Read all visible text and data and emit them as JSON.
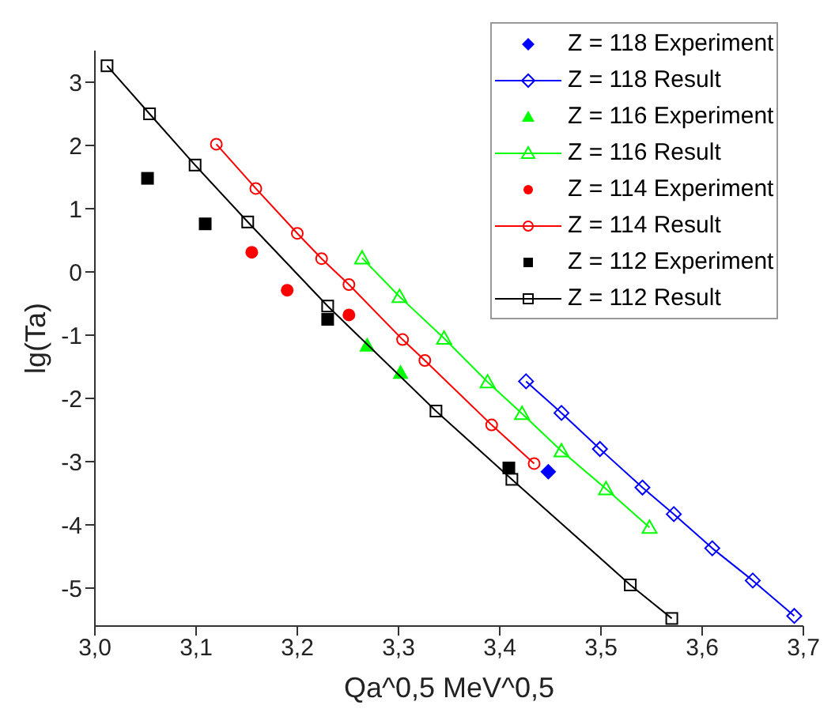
{
  "chart_data": {
    "type": "scatter",
    "xlabel": "Qa^0,5  MeV^0,5",
    "ylabel": "lg(Ta)",
    "xlim": [
      3.0,
      3.7
    ],
    "ylim": [
      -5.6,
      3.5
    ],
    "xticks": [
      {
        "value": 3.0,
        "label": "3,0"
      },
      {
        "value": 3.1,
        "label": "3,1"
      },
      {
        "value": 3.2,
        "label": "3,2"
      },
      {
        "value": 3.3,
        "label": "3,3"
      },
      {
        "value": 3.4,
        "label": "3,4"
      },
      {
        "value": 3.5,
        "label": "3,5"
      },
      {
        "value": 3.6,
        "label": "3,6"
      },
      {
        "value": 3.7,
        "label": "3,7"
      }
    ],
    "yticks": [
      -5,
      -4,
      -3,
      -2,
      -1,
      0,
      1,
      2,
      3
    ],
    "grid": false,
    "legend": "top right",
    "series": [
      {
        "name": "Z = 118 Experiment",
        "type": "scatter",
        "marker": "diamond",
        "color": "#0000ff",
        "x": [
          3.448
        ],
        "values": [
          -3.16
        ]
      },
      {
        "name": "Z = 118 Result",
        "type": "line",
        "marker": "diamond",
        "color": "#0000ff",
        "x": [
          3.426,
          3.461,
          3.499,
          3.541,
          3.572,
          3.61,
          3.65,
          3.691
        ],
        "values": [
          -1.73,
          -2.23,
          -2.8,
          -3.41,
          -3.83,
          -4.37,
          -4.88,
          -5.44
        ]
      },
      {
        "name": "Z = 116 Experiment",
        "type": "scatter",
        "marker": "triangle",
        "color": "#00ff00",
        "x": [
          3.269,
          3.302
        ],
        "values": [
          -1.16,
          -1.59
        ]
      },
      {
        "name": "Z = 116 Result",
        "type": "line",
        "marker": "triangle",
        "color": "#00ff00",
        "x": [
          3.264,
          3.301,
          3.345,
          3.388,
          3.422,
          3.461,
          3.505,
          3.548
        ],
        "values": [
          0.22,
          -0.39,
          -1.05,
          -1.74,
          -2.24,
          -2.83,
          -3.43,
          -4.04
        ]
      },
      {
        "name": "Z = 114 Experiment",
        "type": "scatter",
        "marker": "circle",
        "color": "#ff0000",
        "x": [
          3.155,
          3.19,
          3.251
        ],
        "values": [
          0.31,
          -0.29,
          -0.68
        ]
      },
      {
        "name": "Z = 114 Result",
        "type": "line",
        "marker": "circle",
        "color": "#ff0000",
        "x": [
          3.12,
          3.159,
          3.2,
          3.224,
          3.251,
          3.304,
          3.326,
          3.392,
          3.434
        ],
        "values": [
          2.02,
          1.32,
          0.61,
          0.21,
          -0.2,
          -1.07,
          -1.4,
          -2.42,
          -3.03
        ]
      },
      {
        "name": "Z = 112 Experiment",
        "type": "scatter",
        "marker": "square",
        "color": "#000000",
        "x": [
          3.052,
          3.109,
          3.23,
          3.409
        ],
        "values": [
          1.48,
          0.76,
          -0.75,
          -3.1
        ]
      },
      {
        "name": "Z = 112 Result",
        "type": "line",
        "marker": "square",
        "color": "#000000",
        "x": [
          3.012,
          3.054,
          3.099,
          3.151,
          3.23,
          3.337,
          3.412,
          3.529,
          3.57
        ],
        "values": [
          3.26,
          2.5,
          1.69,
          0.79,
          -0.54,
          -2.2,
          -3.28,
          -4.95,
          -5.48
        ]
      }
    ]
  }
}
